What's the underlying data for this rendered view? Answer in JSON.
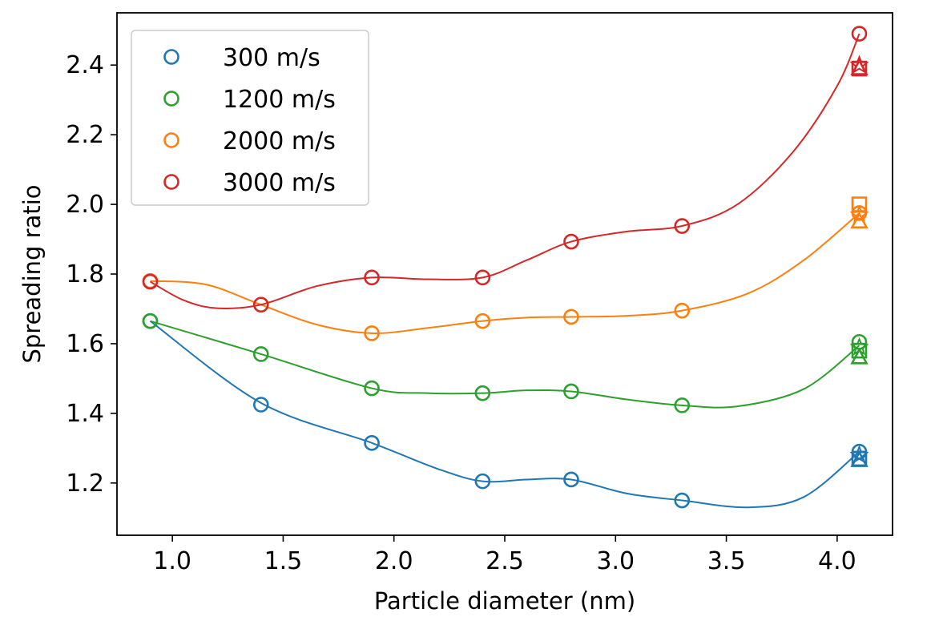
{
  "chart_data": {
    "type": "scatter",
    "title": "",
    "xlabel": "Particle diameter (nm)",
    "ylabel": "Spreading ratio",
    "xlim": [
      0.75,
      4.25
    ],
    "ylim": [
      1.05,
      2.55
    ],
    "x_ticks": [
      "1.0",
      "1.5",
      "2.0",
      "2.5",
      "3.0",
      "3.5",
      "4.0"
    ],
    "y_ticks": [
      "1.2",
      "1.4",
      "1.6",
      "1.8",
      "2.0",
      "2.2",
      "2.4"
    ],
    "x_tick_values": [
      1.0,
      1.5,
      2.0,
      2.5,
      3.0,
      3.5,
      4.0
    ],
    "y_tick_values": [
      1.2,
      1.4,
      1.6,
      1.8,
      2.0,
      2.2,
      2.4
    ],
    "legend_position": "top-left",
    "grid": false,
    "series": [
      {
        "name": "300 m/s",
        "color": "#1f77b4",
        "x": [
          0.9,
          1.4,
          1.9,
          2.4,
          2.8,
          3.3,
          4.1
        ],
        "y": [
          1.665,
          1.425,
          1.315,
          1.205,
          1.21,
          1.15,
          1.29
        ],
        "extra_markers": [
          {
            "shape": "square",
            "x": 4.1,
            "y": 1.27
          },
          {
            "shape": "triangle",
            "x": 4.1,
            "y": 1.265
          },
          {
            "shape": "star",
            "x": 4.1,
            "y": 1.28
          }
        ],
        "curve": [
          [
            0.9,
            1.665
          ],
          [
            1.4,
            1.43
          ],
          [
            1.9,
            1.315
          ],
          [
            2.2,
            1.24
          ],
          [
            2.4,
            1.205
          ],
          [
            2.6,
            1.21
          ],
          [
            2.8,
            1.21
          ],
          [
            3.05,
            1.17
          ],
          [
            3.3,
            1.15
          ],
          [
            3.6,
            1.13
          ],
          [
            3.85,
            1.16
          ],
          [
            4.1,
            1.29
          ]
        ]
      },
      {
        "name": "1200 m/s",
        "color": "#2ca02c",
        "x": [
          0.9,
          1.4,
          1.9,
          2.4,
          2.8,
          3.3,
          4.1
        ],
        "y": [
          1.665,
          1.57,
          1.472,
          1.458,
          1.463,
          1.423,
          1.605
        ],
        "extra_markers": [
          {
            "shape": "square",
            "x": 4.1,
            "y": 1.58
          },
          {
            "shape": "triangle",
            "x": 4.1,
            "y": 1.56
          },
          {
            "shape": "star",
            "x": 4.1,
            "y": 1.59
          }
        ],
        "curve": [
          [
            0.9,
            1.665
          ],
          [
            1.4,
            1.57
          ],
          [
            1.9,
            1.472
          ],
          [
            2.15,
            1.458
          ],
          [
            2.4,
            1.458
          ],
          [
            2.6,
            1.466
          ],
          [
            2.8,
            1.463
          ],
          [
            3.05,
            1.44
          ],
          [
            3.3,
            1.423
          ],
          [
            3.55,
            1.42
          ],
          [
            3.85,
            1.47
          ],
          [
            4.1,
            1.595
          ]
        ]
      },
      {
        "name": "2000 m/s",
        "color": "#ff7f0e",
        "x": [
          0.9,
          1.4,
          1.9,
          2.4,
          2.8,
          3.3,
          4.1
        ],
        "y": [
          1.78,
          1.712,
          1.63,
          1.665,
          1.677,
          1.695,
          1.975
        ],
        "extra_markers": [
          {
            "shape": "square",
            "x": 4.1,
            "y": 2.0
          },
          {
            "shape": "triangle",
            "x": 4.1,
            "y": 1.95
          },
          {
            "shape": "star",
            "x": 4.1,
            "y": 1.97
          }
        ],
        "curve": [
          [
            0.9,
            1.78
          ],
          [
            1.15,
            1.77
          ],
          [
            1.4,
            1.712
          ],
          [
            1.65,
            1.655
          ],
          [
            1.9,
            1.63
          ],
          [
            2.15,
            1.645
          ],
          [
            2.4,
            1.665
          ],
          [
            2.6,
            1.675
          ],
          [
            2.8,
            1.677
          ],
          [
            3.05,
            1.68
          ],
          [
            3.3,
            1.695
          ],
          [
            3.6,
            1.745
          ],
          [
            3.85,
            1.84
          ],
          [
            4.1,
            1.975
          ]
        ]
      },
      {
        "name": "3000 m/s",
        "color": "#d62728",
        "x": [
          0.9,
          1.4,
          1.9,
          2.4,
          2.8,
          3.3,
          4.1
        ],
        "y": [
          1.778,
          1.712,
          1.79,
          1.79,
          1.893,
          1.938,
          2.49
        ],
        "extra_markers": [
          {
            "shape": "square",
            "x": 4.1,
            "y": 2.39
          },
          {
            "shape": "triangle",
            "x": 4.1,
            "y": 2.39
          },
          {
            "shape": "star",
            "x": 4.1,
            "y": 2.4
          }
        ],
        "curve": [
          [
            0.9,
            1.778
          ],
          [
            1.05,
            1.725
          ],
          [
            1.2,
            1.702
          ],
          [
            1.4,
            1.712
          ],
          [
            1.65,
            1.765
          ],
          [
            1.9,
            1.79
          ],
          [
            2.15,
            1.785
          ],
          [
            2.4,
            1.79
          ],
          [
            2.6,
            1.84
          ],
          [
            2.8,
            1.893
          ],
          [
            3.05,
            1.922
          ],
          [
            3.3,
            1.938
          ],
          [
            3.55,
            2.0
          ],
          [
            3.8,
            2.15
          ],
          [
            4.0,
            2.34
          ],
          [
            4.1,
            2.49
          ]
        ]
      }
    ]
  }
}
